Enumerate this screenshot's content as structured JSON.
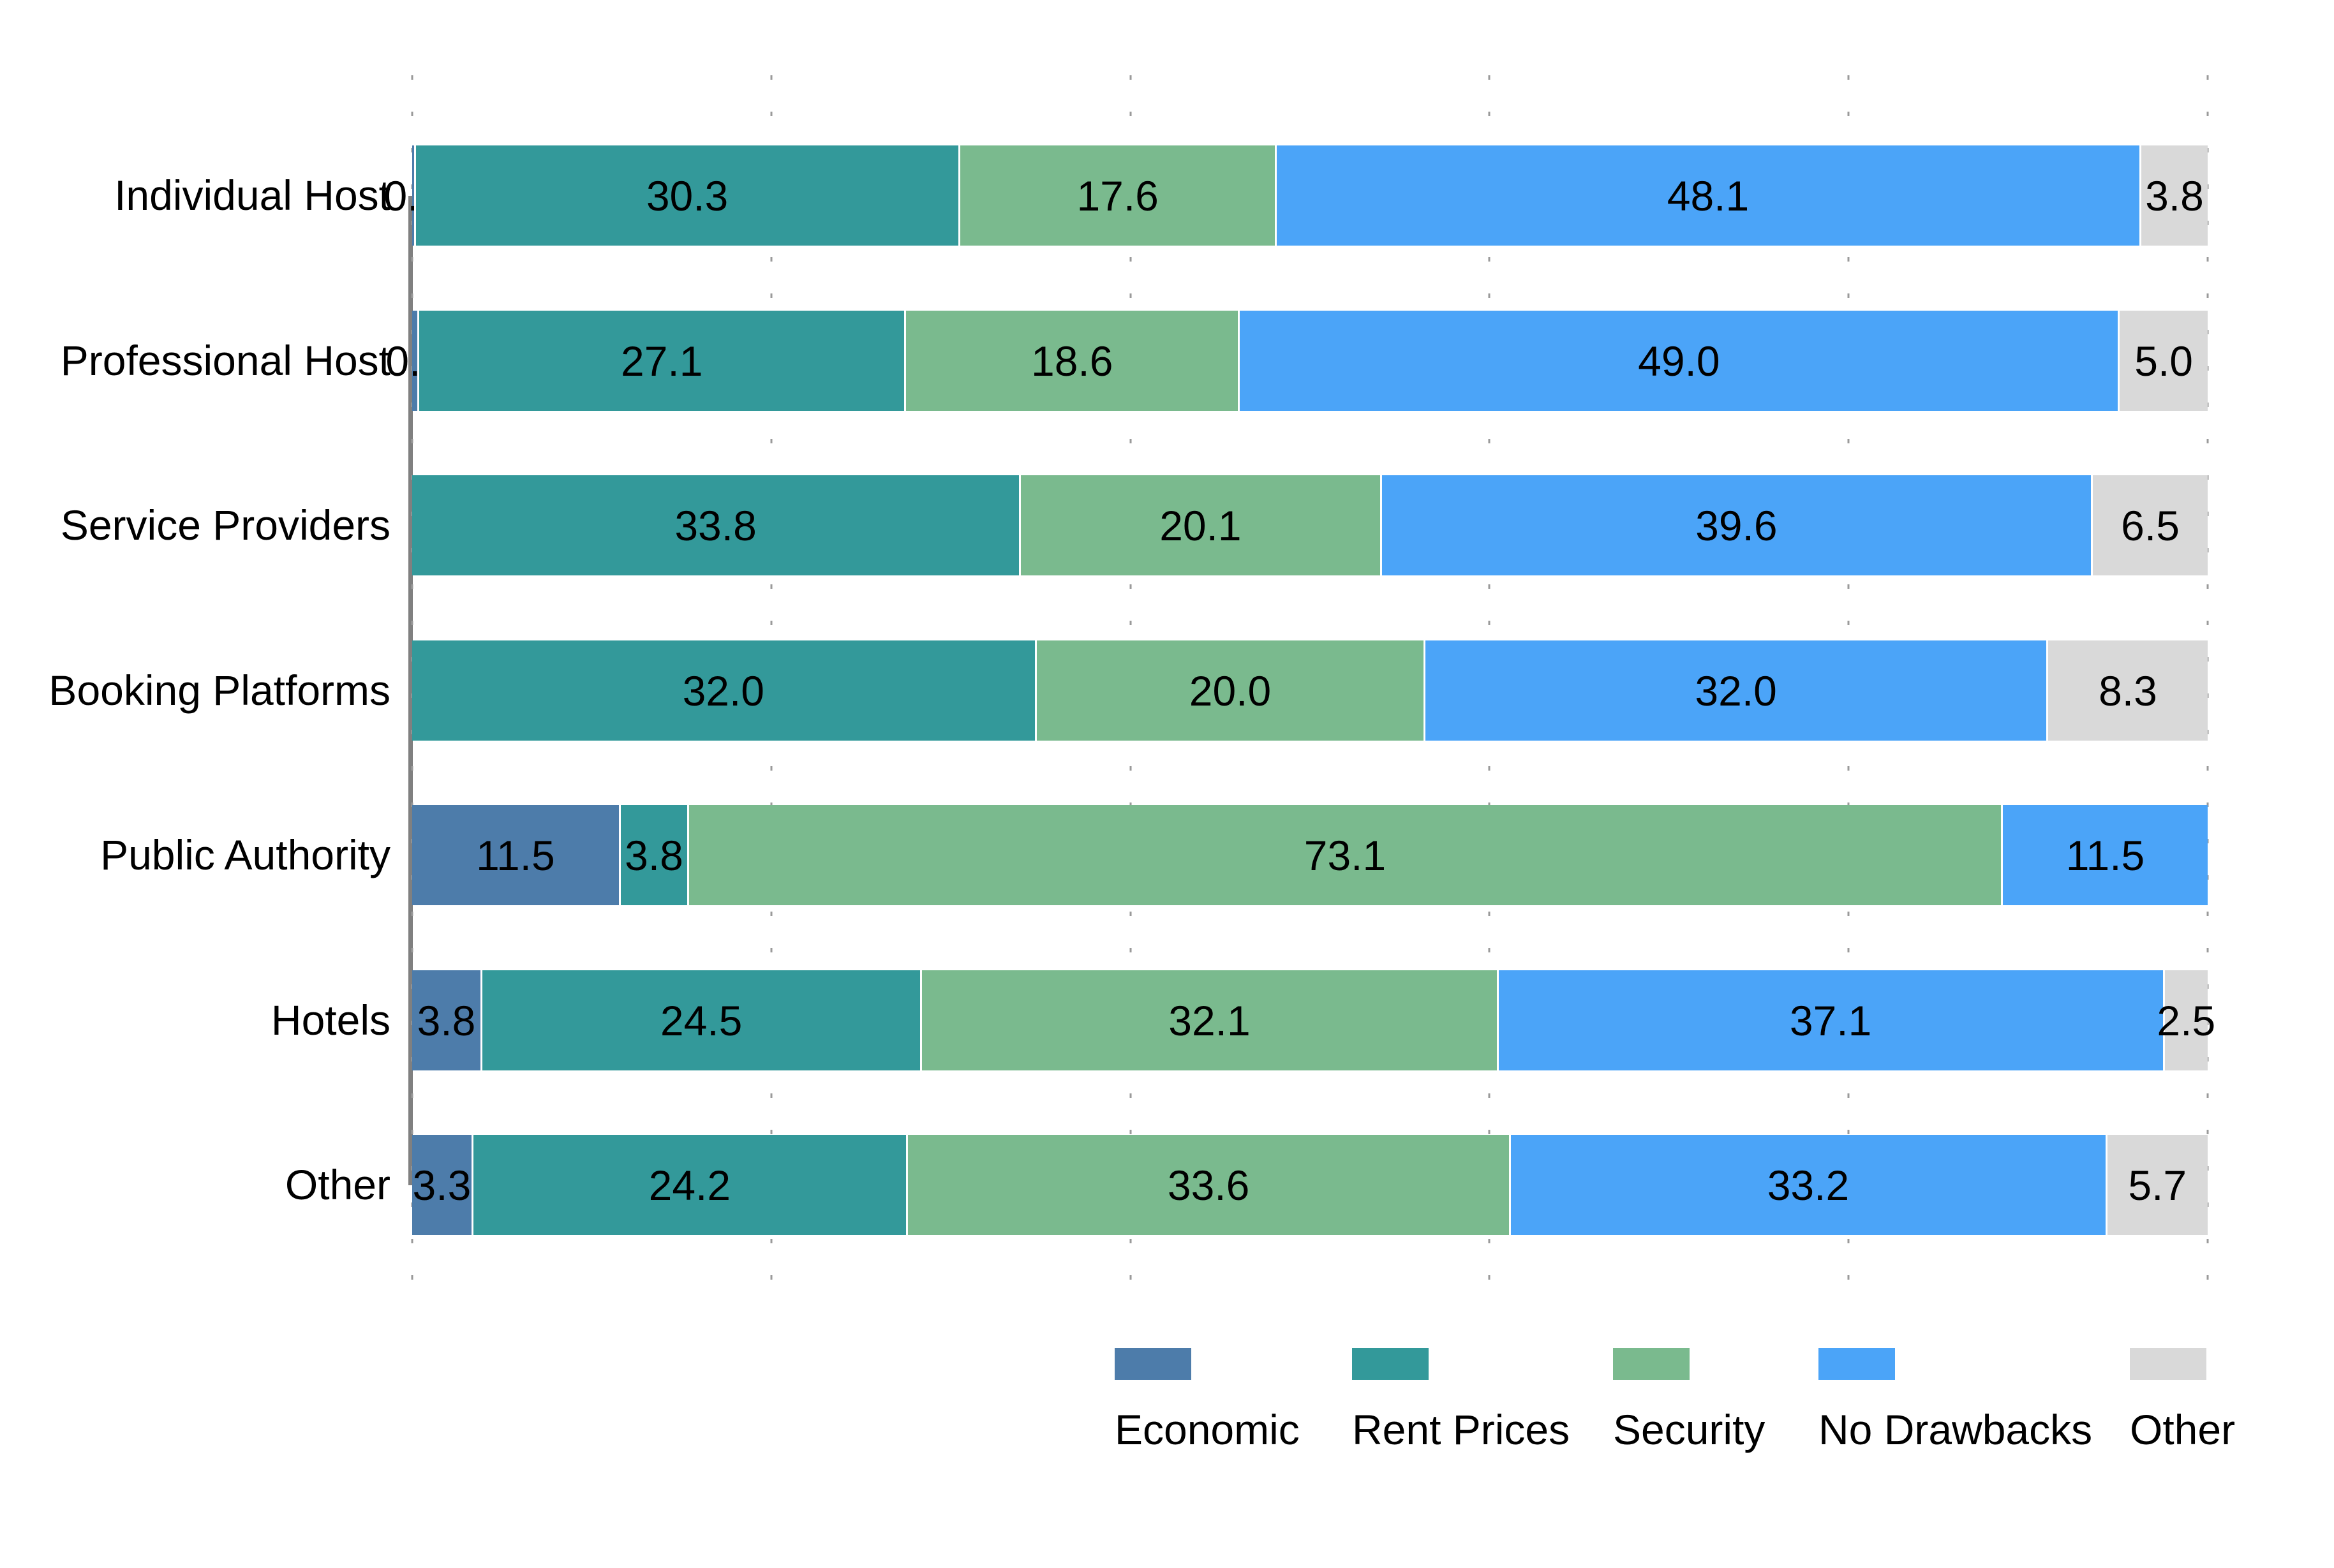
{
  "chart_data": {
    "type": "bar",
    "subtype": "horizontal-stacked",
    "title": "",
    "xlabel": "",
    "ylabel": "",
    "categories": [
      "Individual Host",
      "Professional Host",
      "Service Providers",
      "Booking Platforms",
      "Public Authority",
      "Hotels",
      "Other"
    ],
    "series": [
      {
        "name": "Economic",
        "color": "#4D7CAA"
      },
      {
        "name": "Rent Prices",
        "color": "#33999A"
      },
      {
        "name": "Security",
        "color": "#7ABA8E"
      },
      {
        "name": "No Drawbacks",
        "color": "#4BA4F8"
      },
      {
        "name": "Other",
        "color": "#D9D9D9"
      }
    ],
    "rows": [
      {
        "category": "Individual Host",
        "segments": [
          {
            "series": "Economic",
            "label": "0.1",
            "value": 0.1
          },
          {
            "series": "Rent Prices",
            "label": "30.3",
            "value": 30.3
          },
          {
            "series": "Security",
            "label": "17.6",
            "value": 17.6
          },
          {
            "series": "No Drawbacks",
            "label": "48.1",
            "value": 48.1
          },
          {
            "series": "Other",
            "label": "3.8",
            "value": 3.8
          }
        ]
      },
      {
        "category": "Professional Host",
        "segments": [
          {
            "series": "Economic",
            "label": "0.3",
            "value": 0.3
          },
          {
            "series": "Rent Prices",
            "label": "27.1",
            "value": 27.1
          },
          {
            "series": "Security",
            "label": "18.6",
            "value": 18.6
          },
          {
            "series": "No Drawbacks",
            "label": "49.0",
            "value": 49.0
          },
          {
            "series": "Other",
            "label": "5.0",
            "value": 5.0
          }
        ]
      },
      {
        "category": "Service Providers",
        "segments": [
          {
            "series": "Rent Prices",
            "label": "33.8",
            "value": 33.8
          },
          {
            "series": "Security",
            "label": "20.1",
            "value": 20.1
          },
          {
            "series": "No Drawbacks",
            "label": "39.6",
            "value": 39.6
          },
          {
            "series": "Other",
            "label": "6.5",
            "value": 6.5
          }
        ]
      },
      {
        "category": "Booking Platforms",
        "segments": [
          {
            "series": "Rent Prices",
            "label": "32.0",
            "value": 32.0
          },
          {
            "series": "Security",
            "label": "20.0",
            "value": 20.0
          },
          {
            "series": "No Drawbacks",
            "label": "32.0",
            "value": 32.0
          },
          {
            "series": "Other",
            "label": "8.3",
            "value": 8.3
          }
        ]
      },
      {
        "category": "Public Authority",
        "segments": [
          {
            "series": "Economic",
            "label": "11.5",
            "value": 11.5
          },
          {
            "series": "Rent Prices",
            "label": "3.8",
            "value": 3.8
          },
          {
            "series": "Security",
            "label": "73.1",
            "value": 73.1
          },
          {
            "series": "No Drawbacks",
            "label": "11.5",
            "value": 11.5
          }
        ]
      },
      {
        "category": "Hotels",
        "segments": [
          {
            "series": "Economic",
            "label": "3.8",
            "value": 3.8
          },
          {
            "series": "Rent Prices",
            "label": "24.5",
            "value": 24.5
          },
          {
            "series": "Security",
            "label": "32.1",
            "value": 32.1
          },
          {
            "series": "No Drawbacks",
            "label": "37.1",
            "value": 37.1
          },
          {
            "series": "Other",
            "label": "2.5",
            "value": 2.5
          }
        ]
      },
      {
        "category": "Other",
        "segments": [
          {
            "series": "Economic",
            "label": "3.3",
            "value": 3.3
          },
          {
            "series": "Rent Prices",
            "label": "24.2",
            "value": 24.2
          },
          {
            "series": "Security",
            "label": "33.6",
            "value": 33.6
          },
          {
            "series": "No Drawbacks",
            "label": "33.2",
            "value": 33.2
          },
          {
            "series": "Other",
            "label": "5.7",
            "value": 5.7
          }
        ]
      }
    ],
    "x_axis": {
      "min": 0,
      "max": 100,
      "gridline_step": 20,
      "gridlines": "dotted",
      "tick_labels_visible": false
    },
    "legend_position": "bottom-right",
    "axis_color": "#808080",
    "gridline_color": "#9A9A9A"
  }
}
